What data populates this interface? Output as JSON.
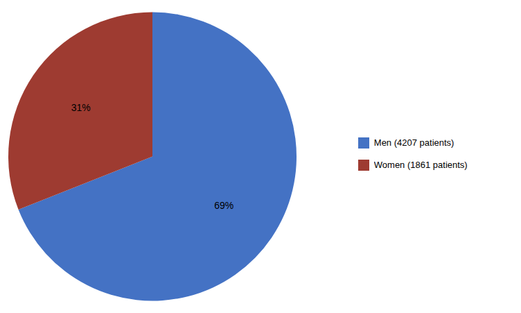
{
  "chart_data": {
    "type": "pie",
    "categories": [
      "Men (4207 patients)",
      "Women (1861 patients)"
    ],
    "values": [
      69,
      31
    ],
    "value_labels": [
      "69%",
      "31%"
    ],
    "data_labels": true,
    "colors": [
      "#4472C4",
      "#9E3B31"
    ],
    "legend": "right"
  }
}
